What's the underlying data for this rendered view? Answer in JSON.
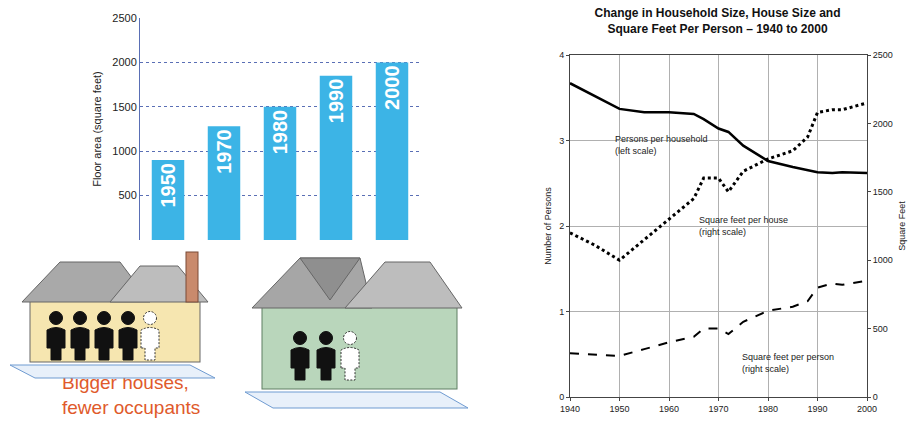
{
  "chart_data": [
    {
      "type": "bar",
      "ylabel": "Floor area (square feet)",
      "categories": [
        "1950",
        "1970",
        "1980",
        "1990",
        "2000"
      ],
      "values": [
        900,
        1280,
        1500,
        1850,
        2000
      ],
      "color": "#3cb4e6",
      "ylim": [
        0,
        2500
      ],
      "yticks": [
        500,
        1000,
        1500,
        2000,
        2500
      ],
      "grid": true,
      "tick_labels": "y",
      "annotations": [
        {
          "text": "Bigger houses, fewer occupants"
        }
      ]
    },
    {
      "type": "line",
      "title": "Change in Household Size, House Size and Square Feet Per Person – 1940 to 2000",
      "ylabel": "Number of Persons",
      "y2label": "Square Feet",
      "x": [
        1940,
        1945,
        1950,
        1955,
        1960,
        1965,
        1967,
        1970,
        1972,
        1975,
        1980,
        1985,
        1988,
        1990,
        1993,
        1995,
        2000
      ],
      "series": [
        {
          "color": "#000000",
          "line_style": "solid",
          "axis": "y",
          "values": [
            3.67,
            3.52,
            3.37,
            3.33,
            3.33,
            3.31,
            3.25,
            3.14,
            3.1,
            2.94,
            2.76,
            2.69,
            2.65,
            2.63,
            2.62,
            2.63,
            2.62
          ]
        },
        {
          "color": "#000000",
          "line_style": "dotted",
          "axis": "y2",
          "values": [
            1200,
            1110,
            1000,
            1150,
            1300,
            1450,
            1600,
            1600,
            1500,
            1650,
            1740,
            1800,
            1900,
            2080,
            2100,
            2100,
            2150
          ]
        },
        {
          "color": "#000000",
          "line_style": "dashed",
          "axis": "y2",
          "values": [
            320,
            310,
            300,
            350,
            400,
            440,
            500,
            500,
            460,
            550,
            630,
            660,
            700,
            800,
            830,
            820,
            850
          ]
        }
      ],
      "xlim": [
        1940,
        2000
      ],
      "xticks": [
        1940,
        1950,
        1960,
        1970,
        1980,
        1990,
        2000
      ],
      "ylim": [
        0,
        4
      ],
      "yticks": [
        0,
        1,
        2,
        3,
        4
      ],
      "y2lim": [
        0,
        2500
      ],
      "y2ticks": [
        0,
        500,
        1000,
        1500,
        2000,
        2500
      ],
      "grid": true,
      "annotations": [
        {
          "text": "Persons per household (left scale)",
          "x": 1958.5,
          "y": 2.95,
          "axis": "y"
        },
        {
          "text": "Square feet per house (right scale)",
          "x": 1975,
          "y": 1250,
          "axis": "y2"
        },
        {
          "text": "Square feet per person (right scale)",
          "x": 1984,
          "y": 250,
          "axis": "y2"
        }
      ]
    }
  ]
}
